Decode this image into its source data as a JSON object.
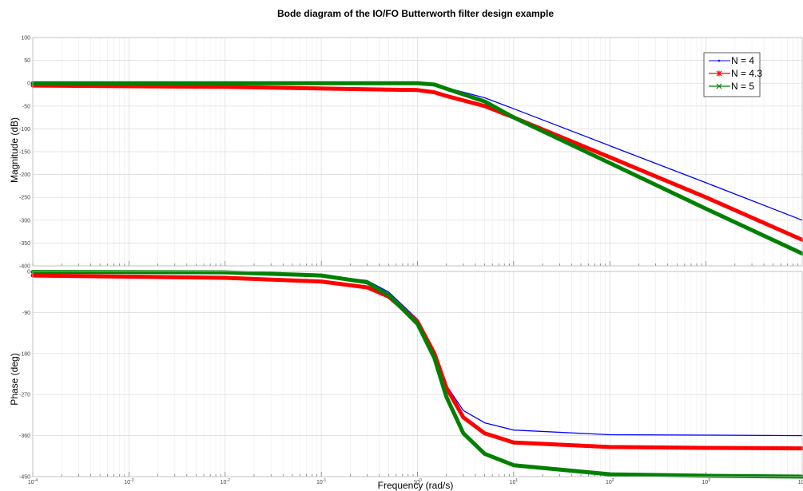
{
  "figure": {
    "title": "Bode diagram of the IO/FO Butterworth filter design example"
  },
  "chart_data": [
    {
      "type": "line",
      "panel": "magnitude",
      "ylabel": "Magnitude (dB)",
      "xlabel": "",
      "xscale": "log",
      "xlim": [
        0.0001,
        10000
      ],
      "ylim": [
        -400,
        100
      ],
      "yticks": [
        100,
        50,
        0,
        -50,
        -100,
        -150,
        -200,
        -250,
        -300,
        -350,
        -400
      ],
      "grid": true,
      "legend": {
        "position": "top-right",
        "entries": [
          "N = 4",
          "N = 4.3",
          "N = 5"
        ]
      },
      "series": [
        {
          "name": "N = 4",
          "color": "#0000ff",
          "marker": "dot",
          "x": [
            0.0001,
            0.01,
            1,
            1.5,
            2,
            5,
            10,
            100,
            1000,
            10000
          ],
          "y": [
            0,
            0,
            0,
            -2,
            -10,
            -32,
            -56,
            -137,
            -218,
            -300
          ]
        },
        {
          "name": "N = 4.3",
          "color": "#ff0000",
          "marker": "star",
          "x": [
            0.0001,
            0.01,
            1,
            1.5,
            2,
            5,
            10,
            100,
            1000,
            10000
          ],
          "y": [
            -5,
            -8,
            -15,
            -20,
            -28,
            -50,
            -75,
            -162,
            -250,
            -343
          ]
        },
        {
          "name": "N = 5",
          "color": "#008000",
          "marker": "x",
          "x": [
            0.0001,
            0.01,
            1,
            1.5,
            2,
            5,
            10,
            100,
            1000,
            10000
          ],
          "y": [
            0,
            0,
            0,
            -3,
            -12,
            -40,
            -75,
            -175,
            -275,
            -373
          ]
        }
      ]
    },
    {
      "type": "line",
      "panel": "phase",
      "ylabel": "Phase (deg)",
      "xlabel": "Frequency (rad/s)",
      "xscale": "log",
      "xlim": [
        0.0001,
        10000
      ],
      "xticks": [
        {
          "base": "10",
          "exp": "-4"
        },
        {
          "base": "10",
          "exp": "-3"
        },
        {
          "base": "10",
          "exp": "-2"
        },
        {
          "base": "10",
          "exp": "-1"
        },
        {
          "base": "10",
          "exp": "0"
        },
        {
          "base": "10",
          "exp": "1"
        },
        {
          "base": "10",
          "exp": "2"
        },
        {
          "base": "10",
          "exp": "3"
        },
        {
          "base": "10",
          "exp": "4"
        }
      ],
      "ylim": [
        -450,
        0
      ],
      "yticks": [
        0,
        -90,
        -180,
        -270,
        -360,
        -450
      ],
      "grid": true,
      "series": [
        {
          "name": "N = 4",
          "color": "#0000ff",
          "marker": "dot",
          "x": [
            0.0001,
            0.01,
            0.1,
            0.3,
            0.5,
            1,
            1.5,
            2,
            3,
            5,
            10,
            100,
            1000,
            10000
          ],
          "y": [
            -1,
            -2,
            -8,
            -20,
            -45,
            -105,
            -175,
            -250,
            -305,
            -332,
            -348,
            -358,
            -359,
            -360
          ]
        },
        {
          "name": "N = 4.3",
          "color": "#ff0000",
          "marker": "star",
          "x": [
            0.0001,
            0.01,
            0.1,
            0.3,
            0.5,
            1,
            1.5,
            2,
            3,
            5,
            10,
            100,
            1000,
            10000
          ],
          "y": [
            -9,
            -14,
            -22,
            -35,
            -55,
            -110,
            -180,
            -255,
            -320,
            -355,
            -375,
            -385,
            -387,
            -388
          ]
        },
        {
          "name": "N = 5",
          "color": "#008000",
          "marker": "x",
          "x": [
            0.0001,
            0.01,
            0.1,
            0.3,
            0.5,
            1,
            1.5,
            2,
            3,
            5,
            10,
            100,
            1000,
            10000
          ],
          "y": [
            -1,
            -2,
            -9,
            -24,
            -52,
            -115,
            -190,
            -275,
            -355,
            -400,
            -425,
            -445,
            -448,
            -450
          ]
        }
      ]
    }
  ]
}
